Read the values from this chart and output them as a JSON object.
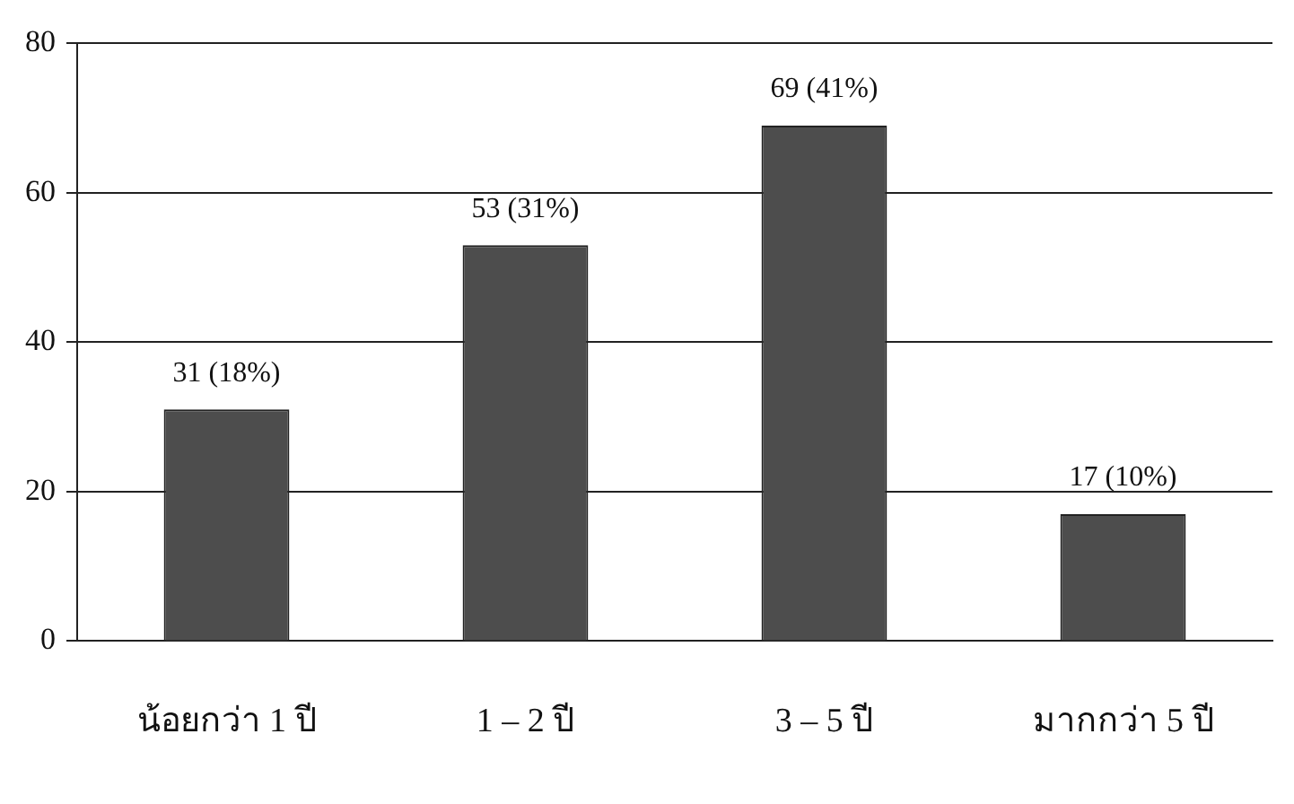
{
  "chart_data": {
    "type": "bar",
    "categories": [
      "น้อยกว่า 1 ปี",
      "1 – 2 ปี",
      "3 – 5 ปี",
      "มากกว่า 5 ปี"
    ],
    "values": [
      31,
      53,
      69,
      17
    ],
    "color": "#4d4d4d",
    "value_labels": [
      "31 (18%)",
      "53 (31%)",
      "69 (41%)",
      "17 (10%)"
    ],
    "ylim": [
      0,
      80
    ],
    "yticks": [
      0,
      20,
      40,
      60,
      80
    ],
    "grid": "y",
    "legend": false
  }
}
